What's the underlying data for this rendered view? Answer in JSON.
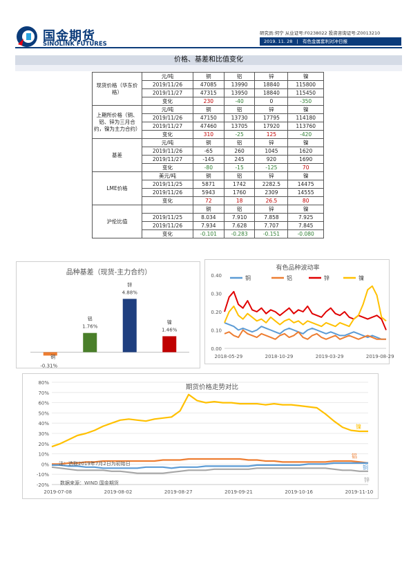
{
  "logo": {
    "cn": "国金期货",
    "en": "SINOLINK FUTURES"
  },
  "header": {
    "credentials": "研究员:何宁  从业证号:F0238022  投资咨询证号:Z0013210",
    "date": "2019. 11. 28",
    "report_title": "有色金属套利对冲日报"
  },
  "section_title": "价格、基差和比值变化",
  "table": {
    "groups": [
      {
        "label": "现货价格（华东价格）",
        "unit": "元/吨",
        "metals": [
          "铜",
          "铝",
          "锌",
          "镍"
        ],
        "rows": [
          {
            "date": "2019/11/26",
            "values": [
              "47085",
              "13990",
              "18840",
              "115800"
            ]
          },
          {
            "date": "2019/11/27",
            "values": [
              "47315",
              "13950",
              "18840",
              "115450"
            ]
          }
        ],
        "change_label": "变化",
        "changes": [
          "230",
          "-40",
          "0",
          "-350"
        ],
        "change_colors": [
          "red",
          "green",
          "none",
          "green"
        ]
      },
      {
        "label": "上期所价格（铜、铝、锌为三月合约，镍为主力合约）",
        "unit": "元/吨",
        "metals": [
          "铜",
          "铝",
          "锌",
          "镍"
        ],
        "rows": [
          {
            "date": "2019/11/26",
            "values": [
              "47150",
              "13730",
              "17795",
              "114180"
            ]
          },
          {
            "date": "2019/11/27",
            "values": [
              "47460",
              "13705",
              "17920",
              "113760"
            ]
          }
        ],
        "change_label": "变化",
        "changes": [
          "310",
          "-25",
          "125",
          "-420"
        ],
        "change_colors": [
          "red",
          "green",
          "red",
          "green"
        ]
      },
      {
        "label": "基差",
        "unit": "元/吨",
        "metals": [
          "铜",
          "铝",
          "锌",
          "镍"
        ],
        "rows": [
          {
            "date": "2019/11/26",
            "values": [
              "-65",
              "260",
              "1045",
              "1620"
            ]
          },
          {
            "date": "2019/11/27",
            "values": [
              "-145",
              "245",
              "920",
              "1690"
            ]
          }
        ],
        "change_label": "变化",
        "changes": [
          "-80",
          "-15",
          "-125",
          "70"
        ],
        "change_colors": [
          "green",
          "green",
          "green",
          "red"
        ]
      },
      {
        "label": "LME价格",
        "unit": "美元/吨",
        "metals": [
          "铜",
          "铝",
          "锌",
          "镍"
        ],
        "rows": [
          {
            "date": "2019/11/25",
            "values": [
              "5871",
              "1742",
              "2282.5",
              "14475"
            ]
          },
          {
            "date": "2019/11/26",
            "values": [
              "5943",
              "1760",
              "2309",
              "14555"
            ]
          }
        ],
        "change_label": "变化",
        "changes": [
          "72",
          "18",
          "26.5",
          "80"
        ],
        "change_colors": [
          "red",
          "red",
          "red",
          "red"
        ]
      },
      {
        "label": "沪伦比值",
        "unit": "",
        "metals": [
          "铜",
          "铝",
          "锌",
          "镍"
        ],
        "rows": [
          {
            "date": "2019/11/25",
            "values": [
              "8.034",
              "7.910",
              "7.858",
              "7.925"
            ]
          },
          {
            "date": "2019/11/26",
            "values": [
              "7.934",
              "7.628",
              "7.707",
              "7.845"
            ]
          }
        ],
        "change_label": "变化",
        "changes": [
          "-0.101",
          "-0.283",
          "-0.151",
          "-0.080"
        ],
        "change_colors": [
          "green",
          "green",
          "green",
          "green"
        ]
      }
    ]
  },
  "chart_data": [
    {
      "type": "bar",
      "title": "品种基差（现货-主力合约）",
      "categories": [
        "铜",
        "铝",
        "锌",
        "镍"
      ],
      "values": [
        -0.31,
        1.76,
        4.88,
        1.46
      ],
      "data_labels": [
        "-0.31%",
        "1.76%",
        "4.88%",
        "1.46%"
      ],
      "colors": [
        "#ed7d31",
        "#4a7f2a",
        "#1f3f7f",
        "#c00000"
      ],
      "ylim": [
        -0.6,
        5.6
      ],
      "grid": false
    },
    {
      "type": "line",
      "title": "有色品种波动率",
      "x_ticks": [
        "2018-05-29",
        "2018-10-29",
        "2019-03-29",
        "2019-08-29"
      ],
      "y_ticks": [
        "0.00",
        "0.10",
        "0.20",
        "0.30",
        "0.40"
      ],
      "ylim": [
        0,
        0.4
      ],
      "legend": "top",
      "grid": false,
      "series": [
        {
          "name": "铜",
          "color": "#5b9bd5",
          "values": [
            0.14,
            0.13,
            0.12,
            0.1,
            0.11,
            0.1,
            0.09,
            0.1,
            0.12,
            0.11,
            0.1,
            0.09,
            0.08,
            0.1,
            0.11,
            0.1,
            0.09,
            0.08,
            0.1,
            0.11,
            0.1,
            0.09,
            0.08,
            0.09,
            0.08,
            0.07,
            0.07,
            0.08,
            0.09,
            0.08,
            0.07,
            0.06,
            0.07,
            0.06,
            0.05,
            0.05
          ]
        },
        {
          "name": "铝",
          "color": "#ed7d31",
          "values": [
            0.08,
            0.09,
            0.07,
            0.06,
            0.1,
            0.08,
            0.07,
            0.06,
            0.08,
            0.07,
            0.06,
            0.05,
            0.07,
            0.08,
            0.06,
            0.07,
            0.09,
            0.06,
            0.05,
            0.07,
            0.08,
            0.06,
            0.05,
            0.06,
            0.07,
            0.05,
            0.06,
            0.07,
            0.06,
            0.05,
            0.06,
            0.07,
            0.06,
            0.05,
            0.05,
            0.05
          ]
        },
        {
          "name": "锌",
          "color": "#e00000",
          "values": [
            0.2,
            0.28,
            0.31,
            0.24,
            0.22,
            0.26,
            0.21,
            0.2,
            0.22,
            0.19,
            0.21,
            0.2,
            0.18,
            0.2,
            0.22,
            0.19,
            0.21,
            0.2,
            0.23,
            0.19,
            0.18,
            0.17,
            0.2,
            0.22,
            0.19,
            0.18,
            0.2,
            0.17,
            0.16,
            0.18,
            0.17,
            0.16,
            0.17,
            0.18,
            0.16,
            0.1
          ]
        },
        {
          "name": "镍",
          "color": "#ffc000",
          "values": [
            0.14,
            0.2,
            0.23,
            0.18,
            0.16,
            0.19,
            0.17,
            0.15,
            0.16,
            0.14,
            0.17,
            0.15,
            0.13,
            0.15,
            0.16,
            0.14,
            0.15,
            0.13,
            0.15,
            0.14,
            0.13,
            0.12,
            0.14,
            0.13,
            0.12,
            0.14,
            0.13,
            0.12,
            0.16,
            0.18,
            0.24,
            0.32,
            0.34,
            0.29,
            0.17,
            0.15
          ]
        }
      ]
    },
    {
      "type": "line",
      "title": "期货价格走势对比",
      "x_ticks": [
        "2019-07-08",
        "2019-08-02",
        "2019-08-27",
        "2019-09-21",
        "2019-10-16",
        "2019-11-10"
      ],
      "y_ticks": [
        "80%",
        "70%",
        "60%",
        "50%",
        "40%",
        "30%",
        "20%",
        "10%",
        "0%",
        "-10%",
        "-20%"
      ],
      "ylim": [
        -20,
        80
      ],
      "grid": true,
      "note": "注：选取2019年7月2日为初始日",
      "source": "数据来源：WIND 国金期货",
      "series": [
        {
          "name": "镍",
          "color": "#ffc000",
          "values": [
            17,
            20,
            24,
            28,
            30,
            33,
            37,
            40,
            43,
            44,
            43,
            42,
            44,
            45,
            46,
            52,
            68,
            62,
            60,
            61,
            60,
            60,
            59,
            59,
            59,
            58,
            59,
            58,
            58,
            57,
            56,
            55,
            49,
            42,
            36,
            33,
            32,
            32
          ]
        },
        {
          "name": "铝",
          "color": "#ed7d31",
          "values": [
            0,
            0,
            1,
            1,
            2,
            2,
            3,
            3,
            3,
            3,
            3,
            3,
            3,
            4,
            4,
            4,
            5,
            5,
            5,
            5,
            5,
            5,
            5,
            4,
            4,
            3,
            3,
            2,
            2,
            2,
            2,
            2,
            2,
            3,
            3,
            3,
            2,
            1
          ]
        },
        {
          "name": "铜",
          "color": "#5b9bd5",
          "values": [
            -1,
            -1,
            -2,
            -2,
            -3,
            -3,
            -4,
            -4,
            -4,
            -4,
            -4,
            -3,
            -3,
            -3,
            -4,
            -3,
            -3,
            -3,
            -2,
            -2,
            -2,
            -2,
            -2,
            -2,
            -1,
            -1,
            -1,
            -1,
            -1,
            -1,
            0,
            0,
            0,
            1,
            1,
            1,
            1,
            1
          ]
        },
        {
          "name": "锌",
          "color": "#a6a6a6",
          "values": [
            -3,
            -4,
            -5,
            -6,
            -6,
            -6,
            -6,
            -7,
            -7,
            -8,
            -9,
            -9,
            -9,
            -9,
            -8,
            -7,
            -6,
            -6,
            -6,
            -5,
            -5,
            -5,
            -5,
            -5,
            -4,
            -4,
            -4,
            -4,
            -4,
            -4,
            -4,
            -4,
            -4,
            -5,
            -6,
            -6,
            -7,
            -7
          ]
        }
      ]
    }
  ]
}
